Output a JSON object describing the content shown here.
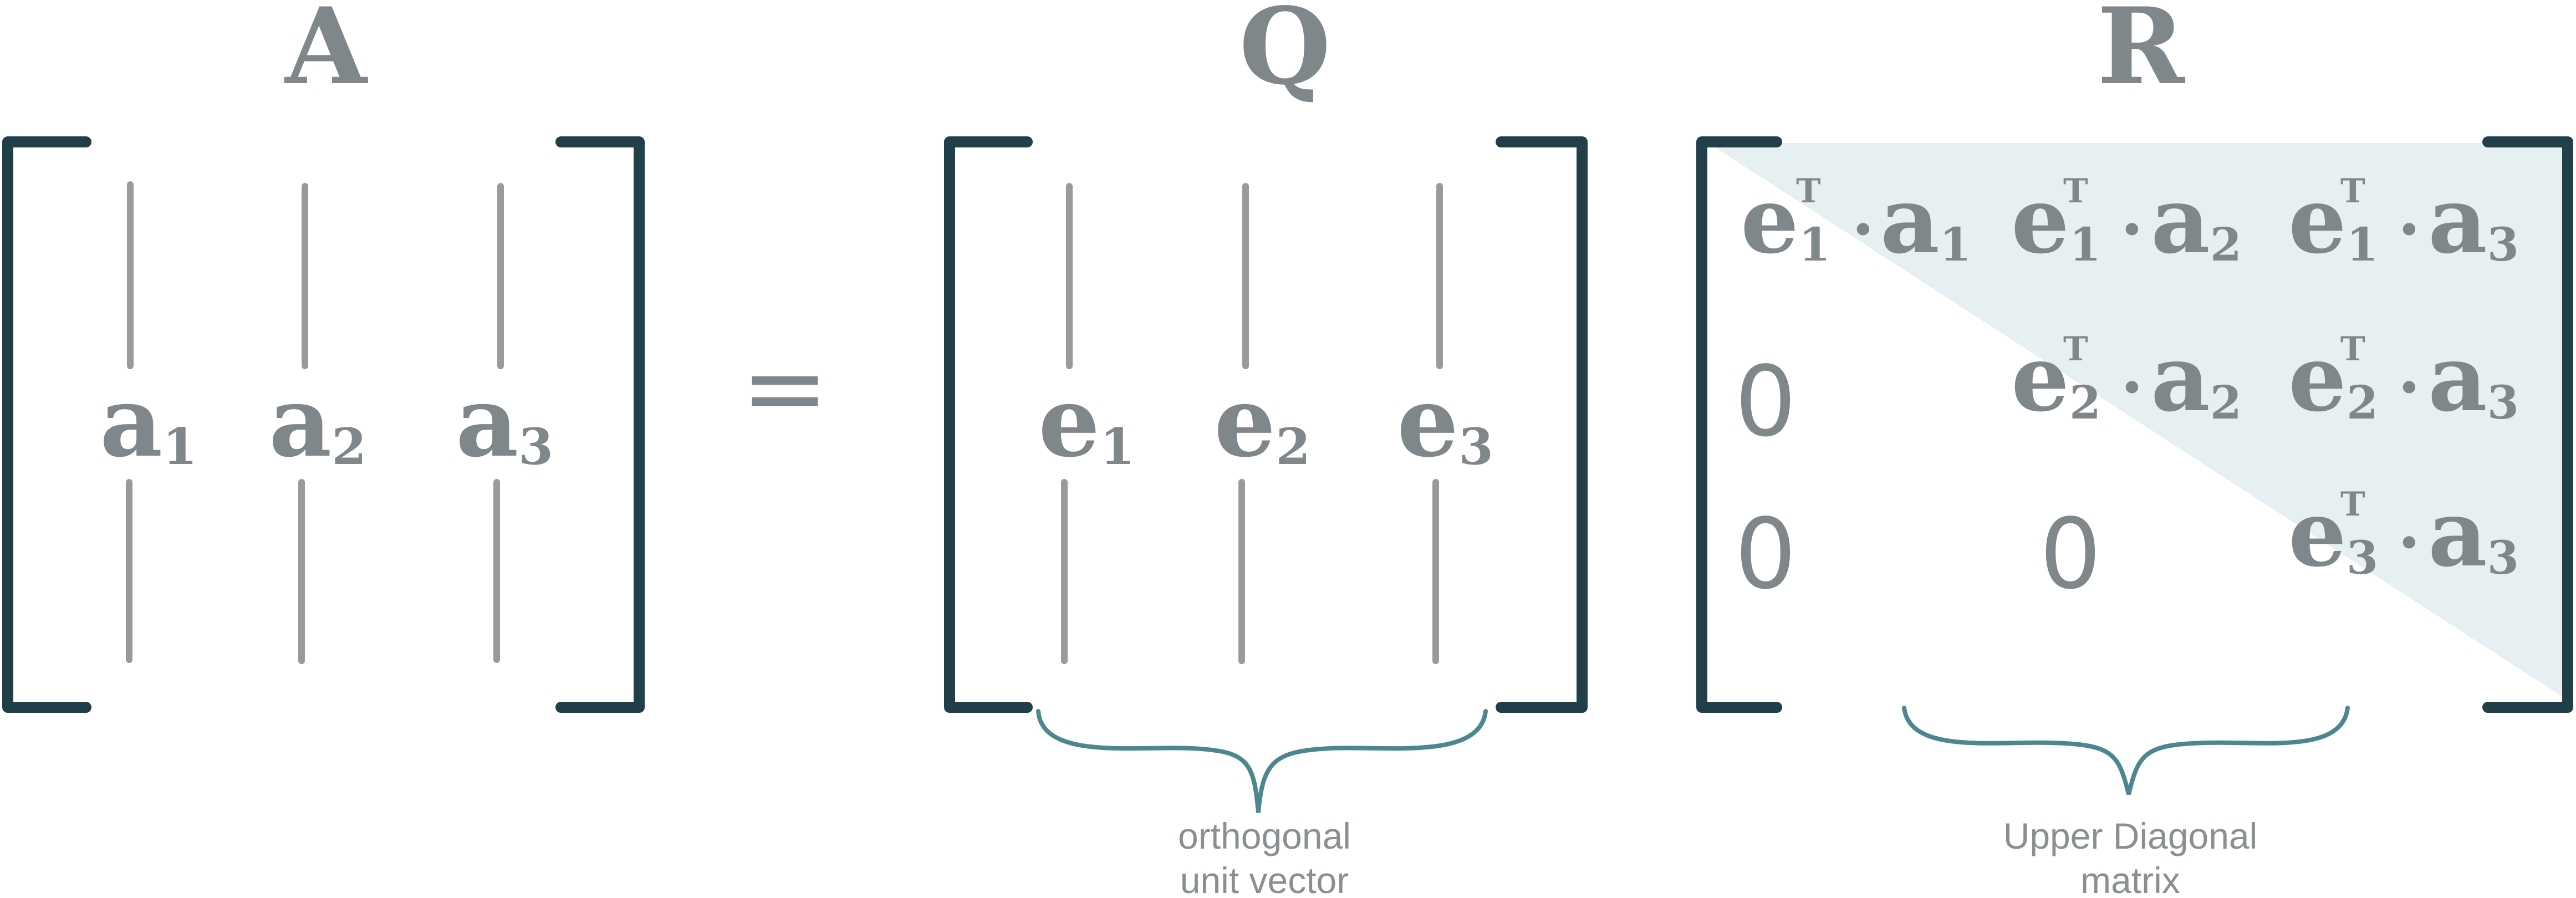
{
  "colors": {
    "bracket": "#213f49",
    "column_line": "#9a9a9a",
    "symbol": "#7f878a",
    "brace": "#4c8790",
    "shading": "#e6eff1",
    "caption": "#8a8f92"
  },
  "matrix_a": {
    "title": "A",
    "columns": [
      {
        "base": "a",
        "sub": "1"
      },
      {
        "base": "a",
        "sub": "2"
      },
      {
        "base": "a",
        "sub": "3"
      }
    ]
  },
  "equals": "=",
  "matrix_q": {
    "title": "Q",
    "columns": [
      {
        "base": "e",
        "sub": "1"
      },
      {
        "base": "e",
        "sub": "2"
      },
      {
        "base": "e",
        "sub": "3"
      }
    ],
    "caption_lines": [
      "orthogonal",
      "unit vector"
    ]
  },
  "matrix_r": {
    "title": "R",
    "transpose_mark": "T",
    "dot": "·",
    "entries": [
      {
        "e_sub": "1",
        "a_sub": "1"
      },
      {
        "e_sub": "1",
        "a_sub": "2"
      },
      {
        "e_sub": "1",
        "a_sub": "3"
      },
      {
        "e_sub": "2",
        "a_sub": "2"
      },
      {
        "e_sub": "2",
        "a_sub": "3"
      },
      {
        "e_sub": "3",
        "a_sub": "3"
      }
    ],
    "zeros": [
      "0",
      "0",
      "0"
    ],
    "caption_lines": [
      "Upper Diagonal",
      "matrix"
    ]
  }
}
